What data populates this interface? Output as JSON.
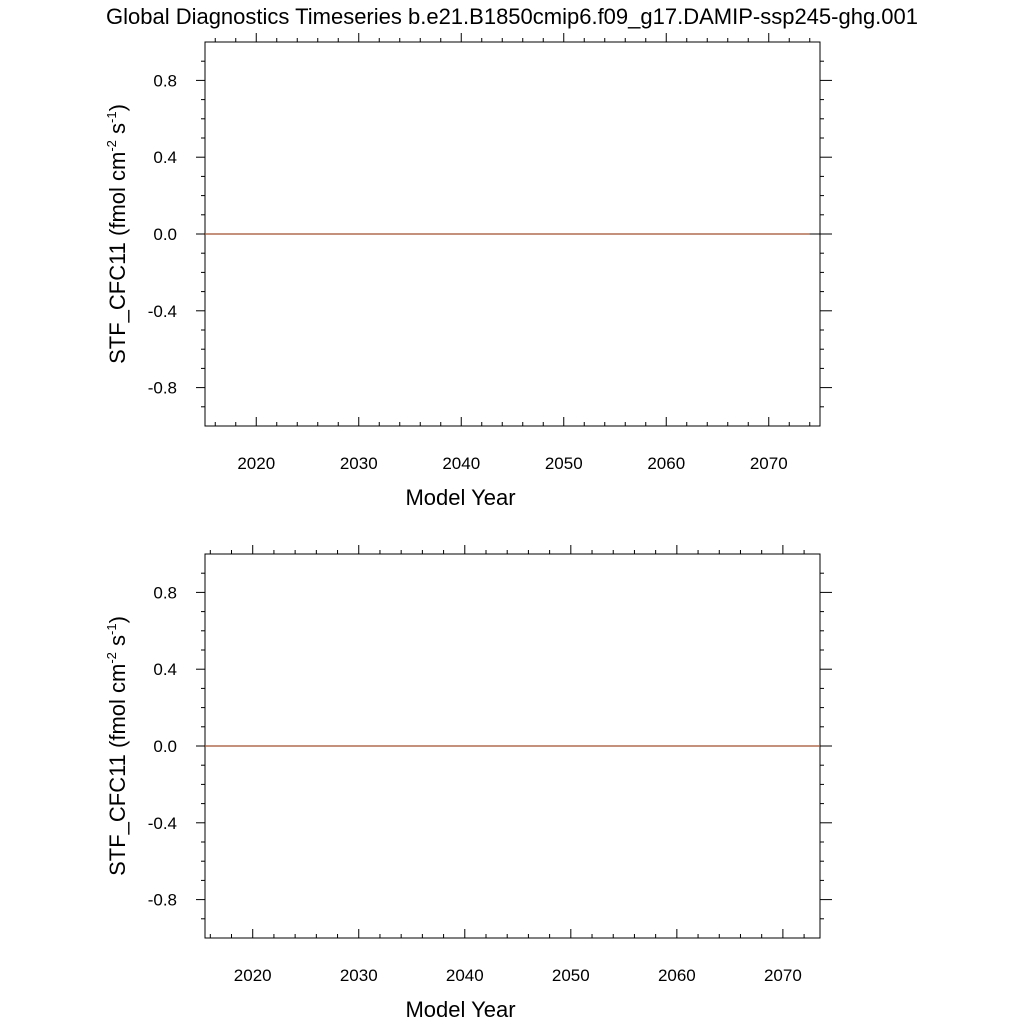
{
  "title": "Global Diagnostics Timeseries b.e21.B1850cmip6.f09_g17.DAMIP-ssp245-ghg.001",
  "colors": {
    "series": "#a0522d",
    "frame": "#000000"
  },
  "chart_data": [
    {
      "type": "line",
      "xlabel": "Model Year",
      "ylabel_parts": [
        "STF_CFC11 (fmol cm",
        "-2",
        " s",
        "-1",
        ")"
      ],
      "xlim": [
        2015,
        2075
      ],
      "ylim": [
        -1.0,
        1.0
      ],
      "xticks": [
        2020,
        2030,
        2040,
        2050,
        2060,
        2070
      ],
      "xtick_labels": [
        "2020",
        "2030",
        "2040",
        "2050",
        "2060",
        "2070"
      ],
      "yticks": [
        0.8,
        0.4,
        0.0,
        -0.4,
        -0.8
      ],
      "ytick_labels": [
        "0.8",
        "0.4",
        "0.0",
        "-0.4",
        "-0.8"
      ],
      "grid": false,
      "series": [
        {
          "x": [
            2015,
            2074
          ],
          "values": [
            0.0,
            0.0
          ]
        }
      ]
    },
    {
      "type": "line",
      "xlabel": "Model Year",
      "ylabel_parts": [
        "STF_CFC11 (fmol cm",
        "-2",
        " s",
        "-1",
        ")"
      ],
      "xlim": [
        2015.5,
        2073.5
      ],
      "ylim": [
        -1.0,
        1.0
      ],
      "xticks": [
        2020,
        2030,
        2040,
        2050,
        2060,
        2070
      ],
      "xtick_labels": [
        "2020",
        "2030",
        "2040",
        "2050",
        "2060",
        "2070"
      ],
      "yticks": [
        0.8,
        0.4,
        0.0,
        -0.4,
        -0.8
      ],
      "ytick_labels": [
        "0.8",
        "0.4",
        "0.0",
        "-0.4",
        "-0.8"
      ],
      "grid": false,
      "series": [
        {
          "x": [
            2015.5,
            2073.5
          ],
          "values": [
            0.0,
            0.0
          ]
        }
      ]
    }
  ]
}
